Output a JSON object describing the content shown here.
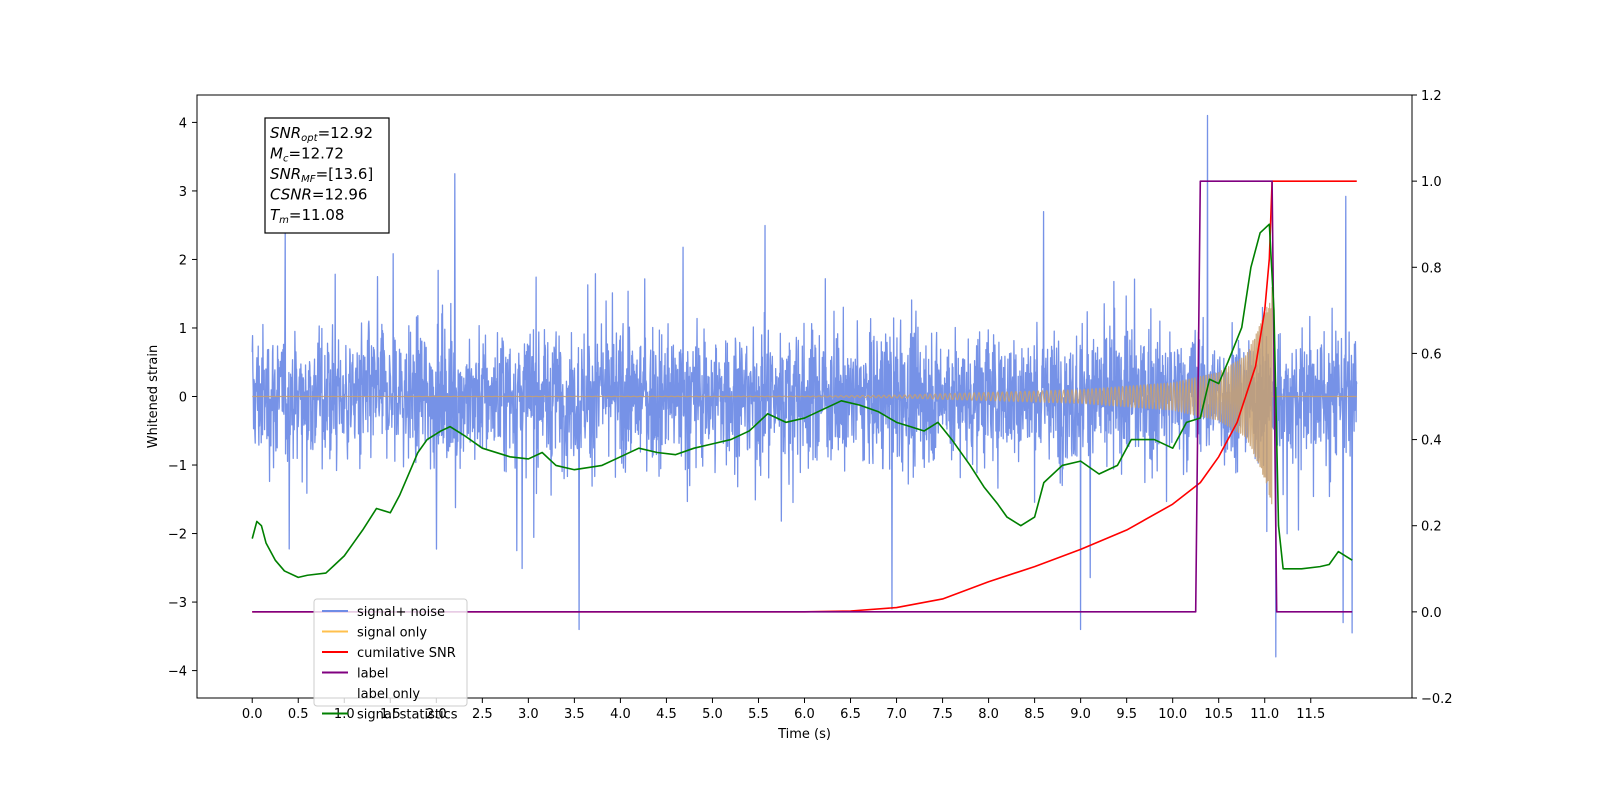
{
  "chart_data": {
    "type": "line",
    "xlabel": "Time (s)",
    "ylabel": "Whitened strain",
    "xlim": [
      -0.6,
      12.6
    ],
    "ylim": [
      -4.4,
      4.4
    ],
    "y2lim": [
      -0.2,
      1.2
    ],
    "x_ticks": [
      0.0,
      0.5,
      1.0,
      1.5,
      2.0,
      2.5,
      3.0,
      3.5,
      4.0,
      4.5,
      5.0,
      5.5,
      6.0,
      6.5,
      7.0,
      7.5,
      8.0,
      8.5,
      9.0,
      9.5,
      10.0,
      10.5,
      11.0,
      11.5
    ],
    "x_tick_labels": [
      "0.0",
      "0.5",
      "1.0",
      "1.5",
      "2.0",
      "2.5",
      "3.0",
      "3.5",
      "4.0",
      "4.5",
      "5.0",
      "5.5",
      "6.0",
      "6.5",
      "7.0",
      "7.5",
      "8.0",
      "8.5",
      "9.0",
      "9.5",
      "10.0",
      "10.5",
      "11.0",
      "11.5"
    ],
    "y_ticks": [
      4,
      3,
      2,
      1,
      0,
      -1,
      -2,
      -3,
      -4
    ],
    "y_tick_labels": [
      "4",
      "3",
      "2",
      "1",
      "0",
      "−1",
      "−2",
      "−3",
      "−4"
    ],
    "y2_ticks": [
      1.2,
      1.0,
      0.8,
      0.6,
      0.4,
      0.2,
      0.0,
      -0.2
    ],
    "y2_tick_labels": [
      "1.2",
      "1.0",
      "0.8",
      "0.6",
      "0.4",
      "0.2",
      "0.0",
      "−0.2"
    ],
    "legend_position": "lower-left",
    "legend": [
      {
        "label": "signal+ noise",
        "color": "#6f8ce6"
      },
      {
        "label": "signal only",
        "color": "#ffc04d"
      },
      {
        "label": "cumilative SNR",
        "color": "#ff0000"
      },
      {
        "label": "label",
        "color": "#800080"
      },
      {
        "label": "label only",
        "color": "#ffffff"
      },
      {
        "label": "signal statistics",
        "color": "#008000"
      }
    ],
    "annotation": {
      "lines": [
        {
          "main": "SNR",
          "sub": "opt",
          "value": "=12.92"
        },
        {
          "main": "M",
          "sub": "c",
          "value": "=12.72"
        },
        {
          "main": "SNR",
          "sub": "MF",
          "value": "=[13.6]"
        },
        {
          "main": "CSNR",
          "sub": "",
          "value": "=12.96"
        },
        {
          "main": "T",
          "sub": "m",
          "value": "=11.08"
        }
      ]
    },
    "series": [
      {
        "name": "signal+ noise",
        "axis": "left",
        "color": "#6f8ce6",
        "style": "noise",
        "x_range": [
          0.0,
          12.0
        ],
        "typical_range": [
          -1.6,
          1.6
        ],
        "peak_max": 4.1,
        "peak_min": -3.8
      },
      {
        "name": "signal only",
        "axis": "left",
        "color": "#c8a070",
        "style": "chirp",
        "x_range": [
          0.0,
          12.0
        ],
        "chirp_end": 11.08,
        "envelope": [
          [
            0.0,
            0.0
          ],
          [
            6.0,
            0.005
          ],
          [
            7.0,
            0.02
          ],
          [
            8.0,
            0.06
          ],
          [
            9.0,
            0.1
          ],
          [
            10.0,
            0.2
          ],
          [
            10.5,
            0.35
          ],
          [
            10.8,
            0.6
          ],
          [
            11.0,
            1.2
          ],
          [
            11.08,
            1.6
          ]
        ]
      },
      {
        "name": "cumilative SNR",
        "axis": "right",
        "color": "#ff0000",
        "points": [
          [
            0.0,
            0.0
          ],
          [
            6.0,
            0.0
          ],
          [
            6.5,
            0.002
          ],
          [
            7.0,
            0.01
          ],
          [
            7.5,
            0.03
          ],
          [
            8.0,
            0.07
          ],
          [
            8.5,
            0.105
          ],
          [
            9.0,
            0.145
          ],
          [
            9.5,
            0.19
          ],
          [
            10.0,
            0.25
          ],
          [
            10.3,
            0.3
          ],
          [
            10.5,
            0.36
          ],
          [
            10.7,
            0.44
          ],
          [
            10.9,
            0.57
          ],
          [
            11.0,
            0.7
          ],
          [
            11.05,
            0.82
          ],
          [
            11.08,
            1.0
          ],
          [
            12.0,
            1.0
          ]
        ]
      },
      {
        "name": "label",
        "axis": "right",
        "color": "#800080",
        "points": [
          [
            0.0,
            0.0
          ],
          [
            10.25,
            0.0
          ],
          [
            10.3,
            1.0
          ],
          [
            11.08,
            1.0
          ],
          [
            11.13,
            0.0
          ],
          [
            11.95,
            0.0
          ]
        ]
      },
      {
        "name": "signal statistics",
        "axis": "right",
        "color": "#008000",
        "points": [
          [
            0.0,
            0.17
          ],
          [
            0.05,
            0.21
          ],
          [
            0.1,
            0.2
          ],
          [
            0.15,
            0.16
          ],
          [
            0.25,
            0.12
          ],
          [
            0.35,
            0.095
          ],
          [
            0.5,
            0.08
          ],
          [
            0.6,
            0.085
          ],
          [
            0.8,
            0.09
          ],
          [
            0.9,
            0.11
          ],
          [
            1.0,
            0.13
          ],
          [
            1.1,
            0.16
          ],
          [
            1.2,
            0.19
          ],
          [
            1.35,
            0.24
          ],
          [
            1.5,
            0.23
          ],
          [
            1.6,
            0.27
          ],
          [
            1.7,
            0.32
          ],
          [
            1.8,
            0.37
          ],
          [
            1.9,
            0.4
          ],
          [
            2.05,
            0.42
          ],
          [
            2.15,
            0.43
          ],
          [
            2.3,
            0.41
          ],
          [
            2.5,
            0.38
          ],
          [
            2.8,
            0.36
          ],
          [
            3.0,
            0.355
          ],
          [
            3.15,
            0.37
          ],
          [
            3.3,
            0.34
          ],
          [
            3.5,
            0.33
          ],
          [
            3.8,
            0.34
          ],
          [
            4.0,
            0.36
          ],
          [
            4.2,
            0.38
          ],
          [
            4.4,
            0.37
          ],
          [
            4.6,
            0.365
          ],
          [
            4.8,
            0.38
          ],
          [
            5.0,
            0.39
          ],
          [
            5.2,
            0.4
          ],
          [
            5.4,
            0.42
          ],
          [
            5.6,
            0.46
          ],
          [
            5.8,
            0.44
          ],
          [
            6.0,
            0.45
          ],
          [
            6.2,
            0.47
          ],
          [
            6.4,
            0.49
          ],
          [
            6.6,
            0.48
          ],
          [
            6.8,
            0.465
          ],
          [
            7.0,
            0.44
          ],
          [
            7.15,
            0.43
          ],
          [
            7.3,
            0.42
          ],
          [
            7.45,
            0.44
          ],
          [
            7.6,
            0.4
          ],
          [
            7.8,
            0.34
          ],
          [
            7.95,
            0.29
          ],
          [
            8.1,
            0.25
          ],
          [
            8.2,
            0.22
          ],
          [
            8.35,
            0.2
          ],
          [
            8.5,
            0.22
          ],
          [
            8.6,
            0.3
          ],
          [
            8.8,
            0.34
          ],
          [
            9.0,
            0.35
          ],
          [
            9.2,
            0.32
          ],
          [
            9.4,
            0.34
          ],
          [
            9.55,
            0.4
          ],
          [
            9.8,
            0.4
          ],
          [
            10.0,
            0.38
          ],
          [
            10.15,
            0.44
          ],
          [
            10.3,
            0.45
          ],
          [
            10.4,
            0.54
          ],
          [
            10.5,
            0.53
          ],
          [
            10.6,
            0.58
          ],
          [
            10.75,
            0.66
          ],
          [
            10.85,
            0.8
          ],
          [
            10.95,
            0.88
          ],
          [
            11.05,
            0.9
          ],
          [
            11.1,
            0.7
          ],
          [
            11.15,
            0.2
          ],
          [
            11.2,
            0.1
          ],
          [
            11.4,
            0.1
          ],
          [
            11.6,
            0.105
          ],
          [
            11.7,
            0.11
          ],
          [
            11.8,
            0.14
          ],
          [
            11.95,
            0.12
          ]
        ]
      }
    ]
  }
}
